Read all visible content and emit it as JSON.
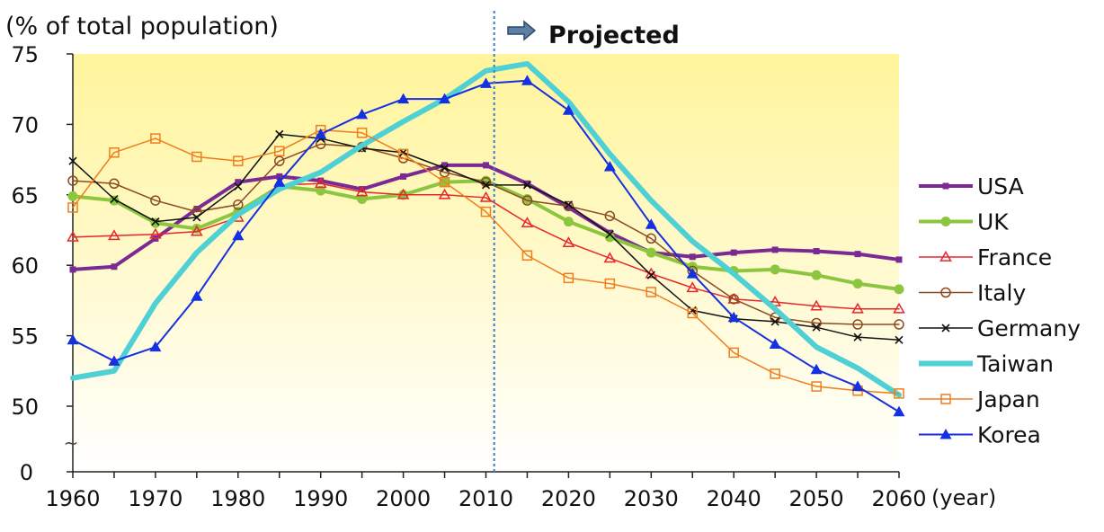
{
  "chart_data": {
    "type": "line",
    "ylabel": "(% of total population)",
    "xlabel": "(year)",
    "projection_label": "Projected",
    "projection_start_year": 2011,
    "ylim": [
      50,
      75
    ],
    "y_ticks": [
      "75",
      "70",
      "65",
      "60",
      "55",
      "50",
      "0"
    ],
    "y_axis_break": "~",
    "x_ticks": [
      "1960",
      "1970",
      "1980",
      "1990",
      "2000",
      "2010",
      "2020",
      "2030",
      "2040",
      "2050",
      "2060"
    ],
    "x": [
      1960,
      1965,
      1970,
      1975,
      1980,
      1985,
      1990,
      1995,
      2000,
      2005,
      2010,
      2015,
      2020,
      2025,
      2030,
      2035,
      2040,
      2045,
      2050,
      2055,
      2060
    ],
    "legend_position": "right",
    "series": [
      {
        "name": "USA",
        "color": "#7B2A93",
        "marker": "square",
        "width": 4,
        "values": [
          59.7,
          59.9,
          61.9,
          64.0,
          65.9,
          66.3,
          66.0,
          65.4,
          66.3,
          67.1,
          67.1,
          65.8,
          64.1,
          62.3,
          60.9,
          60.6,
          60.9,
          61.1,
          61.0,
          60.8,
          60.4
        ]
      },
      {
        "name": "UK",
        "color": "#8CC63F",
        "marker": "circle-filled",
        "width": 4,
        "values": [
          64.9,
          64.6,
          63.0,
          62.6,
          63.8,
          65.6,
          65.3,
          64.7,
          65.0,
          65.9,
          66.0,
          64.7,
          63.1,
          62.0,
          60.9,
          59.9,
          59.6,
          59.7,
          59.3,
          58.7,
          58.3
        ]
      },
      {
        "name": "France",
        "color": "#E8262B",
        "marker": "triangle-open",
        "width": 1.5,
        "values": [
          62.0,
          62.1,
          62.2,
          62.4,
          63.4,
          65.7,
          65.8,
          65.2,
          65.0,
          65.0,
          64.8,
          63.0,
          61.6,
          60.5,
          59.4,
          58.4,
          57.6,
          57.4,
          57.1,
          56.9,
          56.9
        ]
      },
      {
        "name": "Italy",
        "color": "#8B4A22",
        "marker": "circle-open",
        "width": 1.5,
        "values": [
          66.0,
          65.8,
          64.6,
          63.8,
          64.3,
          67.4,
          68.6,
          68.4,
          67.6,
          66.6,
          65.9,
          64.6,
          64.2,
          63.5,
          61.9,
          59.6,
          57.6,
          56.3,
          55.9,
          55.8,
          55.8
        ]
      },
      {
        "name": "Germany",
        "color": "#111111",
        "marker": "x",
        "width": 1.5,
        "values": [
          67.4,
          64.7,
          63.1,
          63.4,
          65.6,
          69.3,
          69.0,
          68.3,
          68.0,
          66.9,
          65.7,
          65.7,
          64.3,
          62.2,
          59.3,
          56.8,
          56.2,
          56.0,
          55.6,
          54.9,
          54.7
        ]
      },
      {
        "name": "Taiwan",
        "color": "#4ED0D4",
        "marker": "none",
        "width": 6,
        "values": [
          52.0,
          52.5,
          57.3,
          60.9,
          63.6,
          65.4,
          66.6,
          68.5,
          70.2,
          71.8,
          73.8,
          74.3,
          71.6,
          67.9,
          64.6,
          61.7,
          59.4,
          56.9,
          54.2,
          52.7,
          50.8
        ]
      },
      {
        "name": "Japan",
        "color": "#F07D1E",
        "marker": "square-open",
        "width": 1.5,
        "values": [
          64.1,
          68.0,
          69.0,
          67.7,
          67.4,
          68.1,
          69.6,
          69.4,
          67.9,
          65.9,
          63.8,
          60.7,
          59.1,
          58.7,
          58.1,
          56.6,
          53.8,
          52.3,
          51.4,
          51.1,
          50.9
        ]
      },
      {
        "name": "Korea",
        "color": "#1430E0",
        "marker": "triangle-filled",
        "width": 2,
        "values": [
          54.7,
          53.2,
          54.2,
          57.8,
          62.1,
          65.9,
          69.3,
          70.7,
          71.8,
          71.8,
          72.9,
          73.1,
          71.0,
          67.0,
          62.9,
          59.4,
          56.3,
          54.4,
          52.6,
          51.4,
          49.6
        ]
      }
    ]
  }
}
